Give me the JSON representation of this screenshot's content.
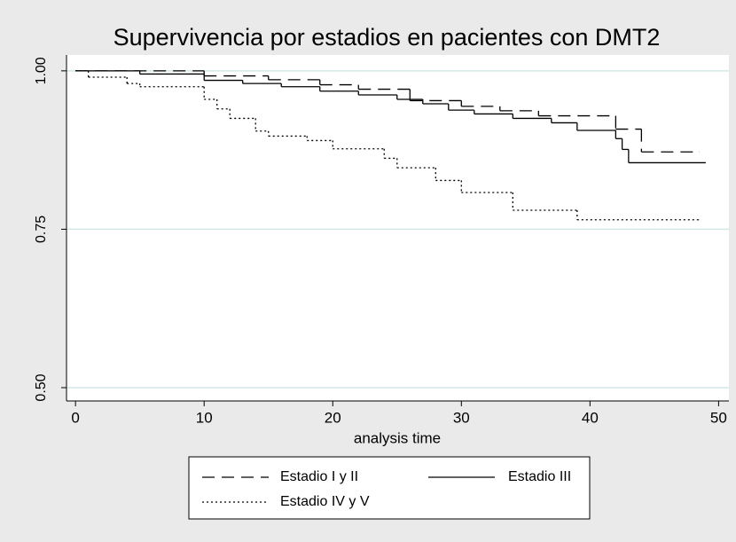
{
  "chart_data": {
    "type": "step",
    "title": "Supervivencia por estadios en pacientes con DMT2",
    "x_label": "analysis time",
    "xlim": [
      -0.7,
      50.8
    ],
    "xticks": [
      0,
      10,
      20,
      30,
      40,
      50
    ],
    "ylim": [
      0.479,
      1.025
    ],
    "yticks": [
      {
        "value": 0.5,
        "label": "0.50"
      },
      {
        "value": 0.75,
        "label": "0.75"
      },
      {
        "value": 1.0,
        "label": "1.00"
      }
    ],
    "grid": true,
    "series": [
      {
        "name": "Estadio I y II",
        "color": "#000000",
        "dash": "14 8",
        "x": [
          0,
          10,
          15,
          19,
          22,
          26,
          30,
          33,
          36,
          42,
          44,
          48.5
        ],
        "values": [
          1.0,
          0.992,
          0.986,
          0.978,
          0.971,
          0.953,
          0.944,
          0.937,
          0.929,
          0.908,
          0.872,
          0.872
        ]
      },
      {
        "name": "Estadio III",
        "color": "#000000",
        "dash": "none",
        "x": [
          0,
          5,
          10,
          13,
          16,
          19,
          22,
          25,
          27,
          29,
          31,
          34,
          37,
          39,
          42,
          42.5,
          43,
          49
        ],
        "values": [
          1.0,
          0.995,
          0.985,
          0.98,
          0.975,
          0.968,
          0.962,
          0.955,
          0.948,
          0.938,
          0.932,
          0.925,
          0.918,
          0.906,
          0.893,
          0.876,
          0.855,
          0.855
        ]
      },
      {
        "name": "Estadio IV y V",
        "color": "#000000",
        "dash": "2 3",
        "x": [
          0,
          1,
          4,
          5,
          10,
          11,
          12,
          14,
          15,
          18,
          20,
          24,
          25,
          28,
          30,
          34,
          39,
          48.5
        ],
        "values": [
          1.0,
          0.99,
          0.98,
          0.975,
          0.955,
          0.94,
          0.925,
          0.905,
          0.897,
          0.89,
          0.877,
          0.862,
          0.847,
          0.827,
          0.808,
          0.78,
          0.765,
          0.765
        ]
      }
    ]
  }
}
